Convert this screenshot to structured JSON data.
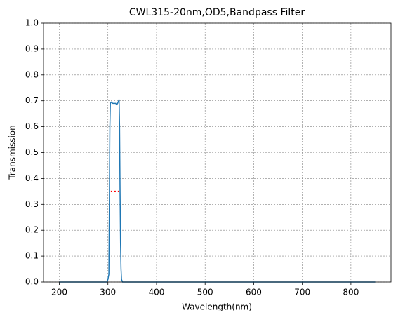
{
  "chart_data": {
    "type": "line",
    "title": "CWL315-20nm,OD5,Bandpass Filter",
    "x_label": "Wavelength(nm)",
    "y_label": "Transmission",
    "xlim": [
      167.5,
      882.5
    ],
    "ylim": [
      0,
      1
    ],
    "xticks": [
      200,
      300,
      400,
      500,
      600,
      700,
      800
    ],
    "yticks": [
      {
        "value": 0,
        "label": "0.0"
      },
      0.1,
      0.2,
      0.3,
      0.4,
      0.5,
      0.6,
      0.7,
      0.8,
      0.9,
      {
        "value": 1,
        "label": "1.0"
      }
    ],
    "grid": true,
    "series": [
      {
        "color": "#1f77b4",
        "style": "solid",
        "x": [
          200,
          298,
          300,
          301,
          302,
          303,
          304,
          305,
          307,
          310,
          313,
          316,
          318,
          320,
          322,
          323,
          324,
          325,
          326,
          327,
          328,
          330,
          332,
          850
        ],
        "values": [
          0,
          0,
          0.01,
          0.02,
          0.03,
          0.3,
          0.6,
          0.69,
          0.695,
          0.69,
          0.69,
          0.69,
          0.685,
          0.69,
          0.7,
          0.705,
          0.6,
          0.35,
          0.15,
          0.05,
          0.01,
          0,
          0,
          0
        ]
      },
      {
        "color": "#ff0000",
        "style": "dotted",
        "x": [
          306,
          325
        ],
        "values": [
          0.35,
          0.35
        ]
      }
    ]
  }
}
